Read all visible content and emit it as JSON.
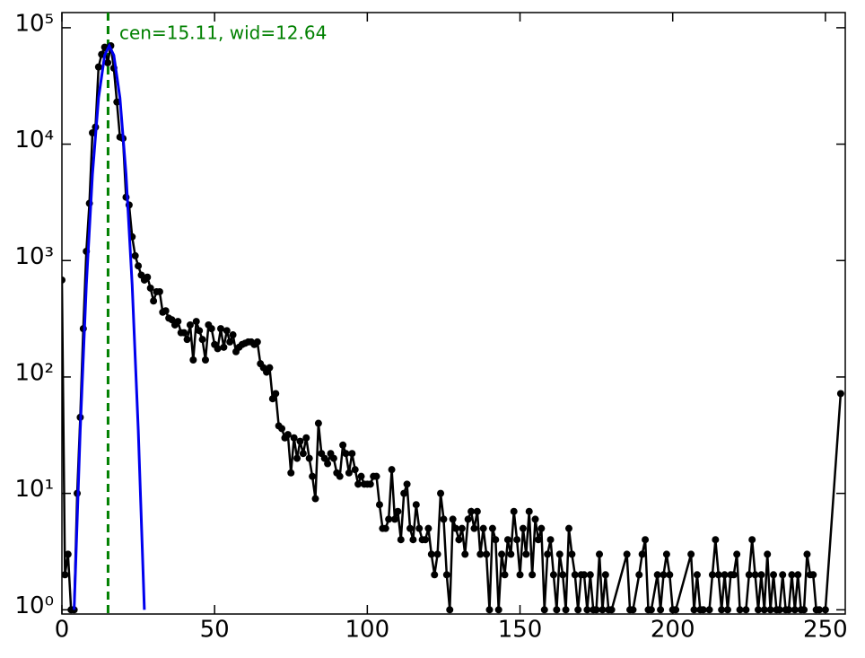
{
  "chart_data": {
    "type": "line",
    "log_scale_y": true,
    "grid": false,
    "annotation": "cen=15.11, wid=12.64",
    "annotation_color": "#008000",
    "vline_x": 15.11,
    "xlim": [
      0,
      256.5
    ],
    "ylim": [
      0.92,
      135000
    ],
    "xticks": [
      0,
      50,
      100,
      150,
      200,
      250
    ],
    "yticks": [
      {
        "value": 1,
        "label": "10⁰"
      },
      {
        "value": 10,
        "label": "10¹"
      },
      {
        "value": 100,
        "label": "10²"
      },
      {
        "value": 1000,
        "label": "10³"
      },
      {
        "value": 10000,
        "label": "10⁴"
      },
      {
        "value": 100000,
        "label": "10⁵"
      }
    ],
    "series": [
      {
        "color": "#000000",
        "markers": true,
        "x": [
          0,
          1,
          2,
          3,
          4,
          5,
          6,
          7,
          8,
          9,
          10,
          11,
          12,
          13,
          14,
          15,
          16,
          17,
          18,
          19,
          20,
          21,
          22,
          23,
          24,
          25,
          26,
          27,
          28,
          29,
          30,
          31,
          32,
          33,
          34,
          35,
          36,
          37,
          38,
          39,
          40,
          41,
          42,
          43,
          44,
          45,
          46,
          47,
          48,
          49,
          50,
          51,
          52,
          53,
          54,
          55,
          56,
          57,
          58,
          59,
          60,
          61,
          62,
          63,
          64,
          65,
          66,
          67,
          68,
          69,
          70,
          71,
          72,
          73,
          74,
          75,
          76,
          77,
          78,
          79,
          80,
          81,
          82,
          83,
          84,
          85,
          86,
          87,
          88,
          89,
          90,
          91,
          92,
          93,
          94,
          95,
          96,
          97,
          98,
          99,
          100,
          101,
          102,
          103,
          104,
          105,
          106,
          107,
          108,
          109,
          110,
          111,
          112,
          113,
          114,
          115,
          116,
          117,
          118,
          119,
          120,
          121,
          122,
          123,
          124,
          125,
          126,
          127,
          128,
          129,
          130,
          131,
          132,
          133,
          134,
          135,
          136,
          137,
          138,
          139,
          140,
          141,
          142,
          143,
          144,
          145,
          146,
          147,
          148,
          149,
          150,
          151,
          152,
          153,
          154,
          155,
          156,
          157,
          158,
          159,
          160,
          161,
          162,
          163,
          164,
          165,
          166,
          167,
          168,
          169,
          170,
          171,
          172,
          173,
          174,
          175,
          176,
          177,
          178,
          179,
          180,
          185,
          186,
          187,
          189,
          190,
          191,
          192,
          193,
          195,
          196,
          197,
          198,
          199,
          200,
          201,
          206,
          207,
          208,
          209,
          210,
          212,
          213,
          214,
          215,
          216,
          217,
          218,
          219,
          220,
          221,
          222,
          224,
          225,
          226,
          227,
          228,
          229,
          230,
          231,
          232,
          233,
          234,
          235,
          236,
          237,
          238,
          239,
          240,
          241,
          242,
          243,
          244,
          245,
          246,
          247,
          248,
          250,
          255
        ],
        "values": [
          680,
          2,
          3,
          1,
          1,
          10,
          45,
          260,
          1200,
          3100,
          12500,
          14000,
          46000,
          59000,
          68000,
          50000,
          70000,
          45000,
          23000,
          11500,
          11200,
          3500,
          3000,
          1600,
          1100,
          900,
          750,
          680,
          720,
          580,
          450,
          540,
          540,
          360,
          370,
          320,
          310,
          280,
          300,
          240,
          240,
          210,
          280,
          140,
          300,
          250,
          210,
          140,
          280,
          260,
          190,
          175,
          260,
          180,
          250,
          200,
          230,
          165,
          180,
          190,
          195,
          200,
          200,
          190,
          200,
          130,
          120,
          110,
          120,
          65,
          72,
          38,
          36,
          30,
          32,
          15,
          30,
          20,
          28,
          22,
          30,
          20,
          14,
          9,
          40,
          22,
          20,
          18,
          22,
          20,
          15,
          14,
          26,
          22,
          15,
          22,
          16,
          12,
          14,
          12,
          12,
          12,
          14,
          14,
          8,
          5,
          5,
          6,
          16,
          6,
          7,
          4,
          10,
          12,
          5,
          4,
          8,
          5,
          4,
          4,
          5,
          3,
          2,
          3,
          10,
          6,
          2,
          1,
          6,
          5,
          4,
          5,
          3,
          6,
          7,
          5,
          7,
          3,
          5,
          3,
          1,
          5,
          4,
          1,
          3,
          2,
          4,
          3,
          7,
          4,
          2,
          5,
          3,
          7,
          2,
          6,
          4,
          5,
          1,
          3,
          4,
          2,
          1,
          3,
          2,
          1,
          5,
          3,
          2,
          1,
          2,
          2,
          1,
          2,
          1,
          1,
          3,
          1,
          2,
          1,
          1,
          3,
          1,
          1,
          2,
          3,
          4,
          1,
          1,
          2,
          1,
          2,
          3,
          2,
          1,
          1,
          3,
          1,
          2,
          1,
          1,
          1,
          2,
          4,
          2,
          1,
          2,
          1,
          2,
          2,
          3,
          1,
          1,
          2,
          4,
          2,
          1,
          2,
          1,
          3,
          1,
          2,
          1,
          1,
          2,
          1,
          1,
          2,
          1,
          2,
          1,
          1,
          3,
          2,
          2,
          1,
          1,
          1,
          72
        ]
      },
      {
        "color": "#0000ee",
        "markers": false,
        "x": [
          4,
          6,
          8,
          10,
          12,
          14,
          15.5,
          17,
          19,
          21,
          23,
          25,
          27
        ],
        "values": [
          1,
          35,
          620,
          5500,
          25000,
          58000,
          70000,
          58000,
          25000,
          5500,
          620,
          35,
          1
        ]
      }
    ]
  }
}
